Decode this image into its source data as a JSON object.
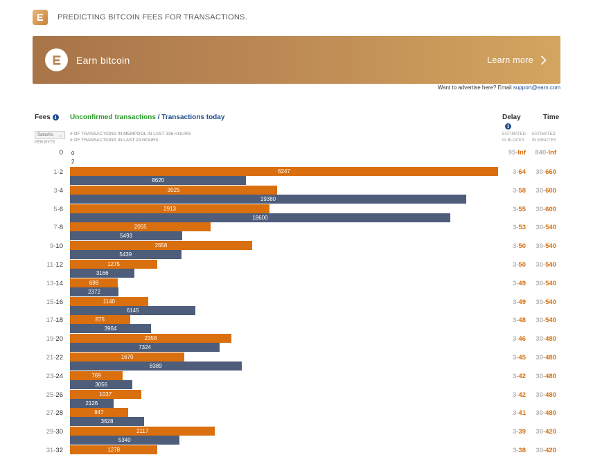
{
  "header": {
    "tagline": "PREDICTING BITCOIN FEES FOR TRANSACTIONS."
  },
  "banner": {
    "title": "Earn bitcoin",
    "cta": "Learn more"
  },
  "advert": {
    "text": "Want to advertise here? Email ",
    "email": "support@earn.com"
  },
  "table_header": {
    "fees": "Fees",
    "unconfirmed": "Unconfirmed transactions",
    "separator": " / ",
    "today": "Transactions today",
    "unit": "Satoshis",
    "per_byte": "PER BYTE",
    "legend_mempool": "# OF TRANSACTIONS IN MEMPOOL IN LAST 336 HOURS",
    "legend_today": "# OF TRANSACTIONS IN LAST 24 HOURS",
    "delay": "Delay",
    "time": "Time",
    "delay_sub1": "ESTIMATED",
    "delay_sub2": "IN BLOCKS",
    "time_sub1": "ESTIMATED",
    "time_sub2": "IN MINUTES"
  },
  "colors": {
    "unconfirmed": "#d96f0e",
    "today": "#4d5d7a",
    "accent": "#d96f0e"
  },
  "chart_data": {
    "type": "bar",
    "orientation": "horizontal",
    "categories": [
      "0",
      "1-2",
      "3-4",
      "5-6",
      "7-8",
      "9-10",
      "11-12",
      "13-14",
      "15-16",
      "17-18",
      "19-20",
      "21-22",
      "23-24",
      "25-26",
      "27-28",
      "29-30",
      "31-32"
    ],
    "series": [
      {
        "name": "Unconfirmed transactions",
        "values": [
          0,
          6247,
          3025,
          2913,
          2055,
          2658,
          1275,
          698,
          1140,
          875,
          2356,
          1670,
          769,
          1037,
          847,
          2117,
          1278
        ]
      },
      {
        "name": "Transactions today",
        "values": [
          2,
          8620,
          19380,
          18600,
          5493,
          5439,
          3166,
          2372,
          6145,
          3964,
          7324,
          8389,
          3056,
          2126,
          3628,
          5340,
          null
        ]
      }
    ]
  },
  "rows": [
    {
      "lo": "",
      "hi": "0",
      "delay_lo": "95",
      "delay_hi": "Inf",
      "time_lo": "840",
      "time_hi": "Inf"
    },
    {
      "lo": "1",
      "hi": "2",
      "delay_lo": "3",
      "delay_hi": "64",
      "time_lo": "30",
      "time_hi": "660"
    },
    {
      "lo": "3",
      "hi": "4",
      "delay_lo": "3",
      "delay_hi": "58",
      "time_lo": "30",
      "time_hi": "600"
    },
    {
      "lo": "5",
      "hi": "6",
      "delay_lo": "3",
      "delay_hi": "55",
      "time_lo": "30",
      "time_hi": "600"
    },
    {
      "lo": "7",
      "hi": "8",
      "delay_lo": "3",
      "delay_hi": "53",
      "time_lo": "30",
      "time_hi": "540"
    },
    {
      "lo": "9",
      "hi": "10",
      "delay_lo": "3",
      "delay_hi": "50",
      "time_lo": "30",
      "time_hi": "540"
    },
    {
      "lo": "11",
      "hi": "12",
      "delay_lo": "3",
      "delay_hi": "50",
      "time_lo": "30",
      "time_hi": "540"
    },
    {
      "lo": "13",
      "hi": "14",
      "delay_lo": "3",
      "delay_hi": "49",
      "time_lo": "30",
      "time_hi": "540"
    },
    {
      "lo": "15",
      "hi": "16",
      "delay_lo": "3",
      "delay_hi": "49",
      "time_lo": "30",
      "time_hi": "540"
    },
    {
      "lo": "17",
      "hi": "18",
      "delay_lo": "3",
      "delay_hi": "48",
      "time_lo": "30",
      "time_hi": "540"
    },
    {
      "lo": "19",
      "hi": "20",
      "delay_lo": "3",
      "delay_hi": "46",
      "time_lo": "30",
      "time_hi": "480"
    },
    {
      "lo": "21",
      "hi": "22",
      "delay_lo": "3",
      "delay_hi": "45",
      "time_lo": "30",
      "time_hi": "480"
    },
    {
      "lo": "23",
      "hi": "24",
      "delay_lo": "3",
      "delay_hi": "42",
      "time_lo": "30",
      "time_hi": "480"
    },
    {
      "lo": "25",
      "hi": "26",
      "delay_lo": "3",
      "delay_hi": "42",
      "time_lo": "30",
      "time_hi": "480"
    },
    {
      "lo": "27",
      "hi": "28",
      "delay_lo": "3",
      "delay_hi": "41",
      "time_lo": "30",
      "time_hi": "480"
    },
    {
      "lo": "29",
      "hi": "30",
      "delay_lo": "3",
      "delay_hi": "39",
      "time_lo": "30",
      "time_hi": "420"
    },
    {
      "lo": "31",
      "hi": "32",
      "delay_lo": "3",
      "delay_hi": "38",
      "time_lo": "30",
      "time_hi": "420"
    }
  ]
}
